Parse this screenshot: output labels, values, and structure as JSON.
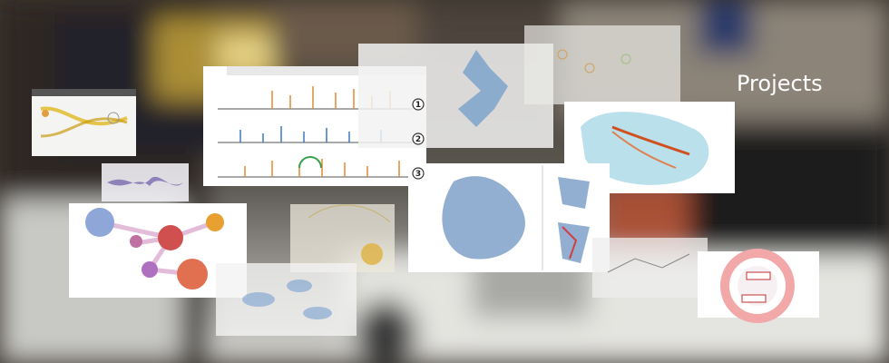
{
  "heading": "Projects",
  "timeline_badges": [
    "1",
    "2",
    "3"
  ]
}
